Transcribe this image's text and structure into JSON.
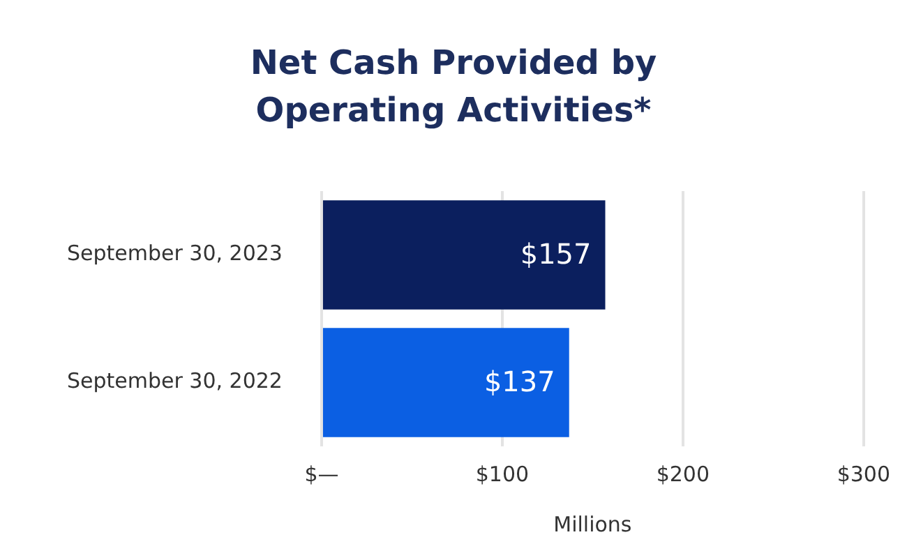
{
  "chart_data": {
    "type": "bar",
    "orientation": "horizontal",
    "title": "Net Cash Provided by Operating Activities*",
    "xlabel": "Millions",
    "categories": [
      "September 30, 2023",
      "September 30, 2022"
    ],
    "values": [
      157,
      137
    ],
    "colors": [
      "#0b1f5e",
      "#0b5fe3"
    ],
    "value_labels": [
      "$157",
      "$137"
    ],
    "xlim": [
      0,
      300
    ],
    "xticks": [
      {
        "value": 0,
        "label": "$—"
      },
      {
        "value": 100,
        "label": "$100"
      },
      {
        "value": 200,
        "label": "$200"
      },
      {
        "value": 300,
        "label": "$300"
      }
    ],
    "grid": "x",
    "legend": false
  }
}
